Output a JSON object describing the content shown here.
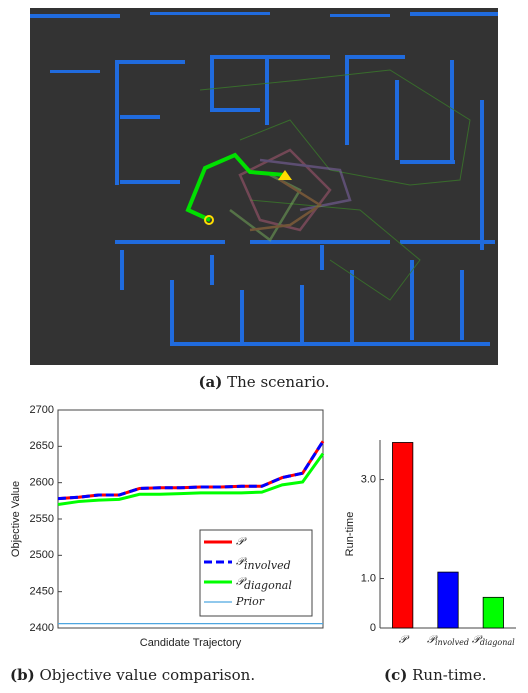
{
  "captions": [
    {
      "label": "(a)",
      "text": "The scenario."
    },
    {
      "label": "(b)",
      "text": "Objective value comparison."
    },
    {
      "label": "(c)",
      "text": "Run-time."
    }
  ],
  "chart_data": [
    {
      "type": "line",
      "ylabel": "Objective Value",
      "xlabel": "Candidate Trajectory",
      "categories": [
        null,
        null,
        null,
        null,
        null,
        null,
        null,
        null,
        null,
        null,
        null,
        null,
        null,
        null
      ],
      "ylim": [
        2400,
        2700
      ],
      "yticks": [
        2400,
        2450,
        2500,
        2550,
        2600,
        2650,
        2700
      ],
      "legend": "lower right",
      "series": [
        {
          "name": "𝒫",
          "color": "#ff0000",
          "dash": "solid",
          "width": 3,
          "values": [
            2578,
            2580,
            2583,
            2583,
            2592,
            2593,
            2593,
            2594,
            2594,
            2595,
            2595,
            2607,
            2613,
            2657
          ]
        },
        {
          "name": "𝒫",
          "name_sub": "involved",
          "color": "#0000ff",
          "dash": "dashed",
          "width": 3,
          "values": [
            2578,
            2580,
            2583,
            2583,
            2592,
            2593,
            2593,
            2594,
            2594,
            2595,
            2595,
            2607,
            2613,
            2657
          ]
        },
        {
          "name": "𝒫",
          "name_sub": "diagonal",
          "color": "#00ff00",
          "dash": "solid",
          "width": 3,
          "values": [
            2570,
            2574,
            2576,
            2577,
            2584,
            2584,
            2585,
            2586,
            2586,
            2586,
            2587,
            2597,
            2601,
            2640
          ]
        },
        {
          "name": "Prior",
          "color": "#4da6e0",
          "dash": "solid",
          "width": 1.2,
          "values": [
            2406,
            2406,
            2406,
            2406,
            2406,
            2406,
            2406,
            2406,
            2406,
            2406,
            2406,
            2406,
            2406,
            2406
          ]
        }
      ]
    },
    {
      "type": "bar",
      "ylabel": "Run-time",
      "categories": [
        "𝒫",
        "𝒫",
        "𝒫"
      ],
      "category_subs": [
        null,
        "involved",
        "diagonal"
      ],
      "values": [
        3.75,
        1.13,
        0.62
      ],
      "colors": [
        "#ff0000",
        "#0000ff",
        "#00ff00"
      ],
      "ylim": [
        0,
        3.8
      ],
      "yticks": [
        0,
        {
          "value": 1,
          "label": "1.0"
        },
        {
          "value": 3,
          "label": "3.0"
        }
      ]
    }
  ]
}
